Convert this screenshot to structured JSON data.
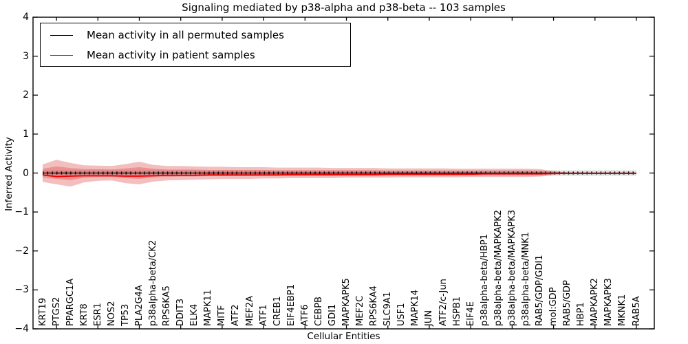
{
  "title": "Signaling mediated by p38-alpha and p38-beta -- 103 samples",
  "legend": {
    "items": [
      {
        "label": "Mean activity in all permuted samples",
        "color": "#000000"
      },
      {
        "label": "Mean activity in patient samples",
        "color": "#ff0000"
      }
    ]
  },
  "colors": {
    "patient_band": "#dd4444",
    "patient_band_opacity": 0.35,
    "permuted_band": "#999999",
    "permuted_band_opacity": 0.3,
    "patient_line": "#ee0000",
    "permuted_line": "#000000",
    "frame": "#000000"
  },
  "chart_data": {
    "type": "line",
    "title": "Signaling mediated by p38-alpha and p38-beta -- 103 samples",
    "xlabel": "Cellular Entities",
    "ylabel": "Inferred Activity",
    "ylim": [
      -4,
      4
    ],
    "ytick_labels": [
      "−4",
      "−3",
      "−2",
      "−1",
      "0",
      "1",
      "2",
      "3",
      "4"
    ],
    "ytick_values": [
      -4,
      -3,
      -2,
      -1,
      0,
      1,
      2,
      3,
      4
    ],
    "grid": false,
    "legend_position": "upper left",
    "categories": [
      "KRT19",
      "PTGS2",
      "PPARGC1A",
      "KRT8",
      "ESR1",
      "NOS2",
      "TP53",
      "PLA2G4A",
      "p38alpha-beta/CK2",
      "RPS6KA5",
      "DDIT3",
      "ELK4",
      "MAPK11",
      "MITF",
      "ATF2",
      "MEF2A",
      "ATF1",
      "CREB1",
      "EIF4EBP1",
      "ATF6",
      "CEBPB",
      "GDI1",
      "MAPKAPK5",
      "MEF2C",
      "RPS6KA4",
      "SLC9A1",
      "USF1",
      "MAPK14",
      "JUN",
      "ATF2/c-Jun",
      "HSPB1",
      "EIF4E",
      "p38alpha-beta/HBP1",
      "p38alpha-beta/MAPKAPK2",
      "p38alpha-beta/MAPKAPK3",
      "p38alpha-beta/MNK1",
      "RAB5/GDP/GDI1",
      "mol:GDP",
      "RAB5/GDP",
      "HBP1",
      "MAPKAPK2",
      "MAPKAPK3",
      "MKNK1",
      "RAB5A"
    ],
    "series": [
      {
        "name": "Mean activity in all permuted samples",
        "color": "#000000",
        "values": [
          0,
          0,
          0,
          0,
          0,
          0,
          0,
          0,
          0,
          0,
          0,
          0,
          0,
          0,
          0,
          0,
          0,
          0,
          0,
          0,
          0,
          0,
          0,
          0,
          0,
          0,
          0,
          0,
          0,
          0,
          0,
          0,
          0,
          0,
          0,
          0,
          0,
          0,
          0,
          0,
          0,
          0,
          0,
          0
        ]
      },
      {
        "name": "Mean activity in patient samples",
        "color": "#ee0000",
        "values": [
          -0.05,
          -0.09,
          -0.08,
          -0.07,
          -0.07,
          -0.07,
          -0.08,
          -0.08,
          -0.07,
          -0.06,
          -0.06,
          -0.06,
          -0.05,
          -0.05,
          -0.05,
          -0.05,
          -0.05,
          -0.05,
          -0.04,
          -0.04,
          -0.04,
          -0.04,
          -0.04,
          -0.04,
          -0.04,
          -0.03,
          -0.03,
          -0.03,
          -0.03,
          -0.03,
          -0.03,
          -0.03,
          -0.02,
          -0.02,
          -0.02,
          -0.02,
          -0.02,
          -0.01,
          -0.01,
          -0.01,
          -0.01,
          -0.01,
          -0.01,
          -0.01
        ]
      }
    ],
    "bands": [
      {
        "name": "permuted-samples-std",
        "color": "#999999",
        "opacity": 0.3,
        "upper": [
          0.07,
          0.07,
          0.07,
          0.07,
          0.07,
          0.07,
          0.07,
          0.07,
          0.07,
          0.07,
          0.07,
          0.07,
          0.07,
          0.07,
          0.07,
          0.07,
          0.07,
          0.07,
          0.07,
          0.07,
          0.07,
          0.07,
          0.07,
          0.07,
          0.07,
          0.07,
          0.07,
          0.07,
          0.07,
          0.07,
          0.07,
          0.07,
          0.07,
          0.07,
          0.07,
          0.07,
          0.07,
          0.07,
          0.07,
          0.07,
          0.07,
          0.07,
          0.07,
          0.07
        ],
        "lower": [
          -0.07,
          -0.07,
          -0.07,
          -0.07,
          -0.07,
          -0.07,
          -0.07,
          -0.07,
          -0.07,
          -0.07,
          -0.07,
          -0.07,
          -0.07,
          -0.07,
          -0.07,
          -0.07,
          -0.07,
          -0.07,
          -0.07,
          -0.07,
          -0.07,
          -0.07,
          -0.07,
          -0.07,
          -0.07,
          -0.07,
          -0.07,
          -0.07,
          -0.07,
          -0.07,
          -0.07,
          -0.07,
          -0.07,
          -0.07,
          -0.07,
          -0.07,
          -0.07,
          -0.07,
          -0.07,
          -0.07,
          -0.07,
          -0.07,
          -0.07,
          -0.07
        ]
      },
      {
        "name": "patient-samples-std-outer",
        "color": "#dd4444",
        "opacity": 0.35,
        "upper": [
          0.22,
          0.34,
          0.26,
          0.2,
          0.19,
          0.18,
          0.23,
          0.29,
          0.21,
          0.18,
          0.18,
          0.17,
          0.16,
          0.16,
          0.15,
          0.15,
          0.15,
          0.14,
          0.14,
          0.14,
          0.14,
          0.13,
          0.13,
          0.13,
          0.13,
          0.12,
          0.12,
          0.12,
          0.12,
          0.12,
          0.11,
          0.11,
          0.11,
          0.11,
          0.11,
          0.11,
          0.1,
          0.05,
          0.01,
          0,
          0,
          0,
          0,
          0
        ],
        "lower": [
          -0.23,
          -0.29,
          -0.35,
          -0.24,
          -0.2,
          -0.19,
          -0.26,
          -0.29,
          -0.22,
          -0.19,
          -0.18,
          -0.17,
          -0.16,
          -0.15,
          -0.15,
          -0.15,
          -0.14,
          -0.14,
          -0.13,
          -0.13,
          -0.13,
          -0.13,
          -0.12,
          -0.12,
          -0.12,
          -0.12,
          -0.11,
          -0.11,
          -0.11,
          -0.11,
          -0.11,
          -0.1,
          -0.1,
          -0.1,
          -0.1,
          -0.1,
          -0.09,
          -0.05,
          -0.01,
          0,
          0,
          0,
          0,
          0
        ]
      },
      {
        "name": "patient-samples-std-inner",
        "color": "#dd4444",
        "opacity": 0.35,
        "upper": [
          0.11,
          0.17,
          0.13,
          0.1,
          0.1,
          0.09,
          0.12,
          0.15,
          0.11,
          0.09,
          0.09,
          0.09,
          0.08,
          0.08,
          0.08,
          0.08,
          0.08,
          0.07,
          0.07,
          0.07,
          0.07,
          0.07,
          0.07,
          0.07,
          0.07,
          0.06,
          0.06,
          0.06,
          0.06,
          0.06,
          0.06,
          0.06,
          0.06,
          0.06,
          0.06,
          0.06,
          0.05,
          0.03,
          0.01,
          0,
          0,
          0,
          0,
          0
        ],
        "lower": [
          -0.12,
          -0.15,
          -0.18,
          -0.12,
          -0.1,
          -0.1,
          -0.13,
          -0.15,
          -0.11,
          -0.1,
          -0.09,
          -0.09,
          -0.08,
          -0.08,
          -0.08,
          -0.08,
          -0.07,
          -0.07,
          -0.07,
          -0.07,
          -0.07,
          -0.07,
          -0.06,
          -0.06,
          -0.06,
          -0.06,
          -0.06,
          -0.06,
          -0.06,
          -0.06,
          -0.06,
          -0.05,
          -0.05,
          -0.05,
          -0.05,
          -0.05,
          -0.05,
          -0.03,
          -0.01,
          0,
          0,
          0,
          0,
          0
        ]
      }
    ]
  }
}
